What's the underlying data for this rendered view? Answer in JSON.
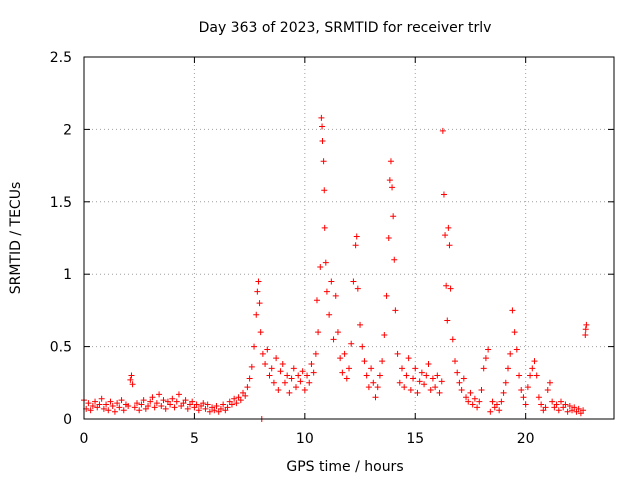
{
  "chart_data": {
    "type": "scatter",
    "title": "Day 363 of 2023, SRMTID for receiver trlv",
    "xlabel": "GPS time / hours",
    "ylabel": "SRMTID / TECUs",
    "xlim": [
      0,
      24
    ],
    "ylim": [
      0,
      2.5
    ],
    "x_ticks": [
      0,
      5,
      10,
      15,
      20
    ],
    "x_tick_labels": [
      "0",
      "5",
      "10",
      "15",
      "20"
    ],
    "y_ticks": [
      0,
      0.5,
      1,
      1.5,
      2,
      2.5
    ],
    "y_tick_labels": [
      "0",
      "0.5",
      "1",
      "1.5",
      "2",
      "2.5"
    ],
    "grid": true,
    "marker": "+",
    "color": "#ff0000",
    "series": [
      {
        "name": "SRMTID",
        "points": [
          [
            0.0,
            0.13
          ],
          [
            0.1,
            0.07
          ],
          [
            0.2,
            0.11
          ],
          [
            0.3,
            0.06
          ],
          [
            0.4,
            0.09
          ],
          [
            0.5,
            0.12
          ],
          [
            0.6,
            0.08
          ],
          [
            0.7,
            0.1
          ],
          [
            0.8,
            0.14
          ],
          [
            0.9,
            0.07
          ],
          [
            1.0,
            0.1
          ],
          [
            1.1,
            0.06
          ],
          [
            1.2,
            0.12
          ],
          [
            1.3,
            0.09
          ],
          [
            1.4,
            0.05
          ],
          [
            1.5,
            0.11
          ],
          [
            1.6,
            0.08
          ],
          [
            1.7,
            0.13
          ],
          [
            1.8,
            0.06
          ],
          [
            1.9,
            0.1
          ],
          [
            2.0,
            0.09
          ],
          [
            2.1,
            0.27
          ],
          [
            2.15,
            0.3
          ],
          [
            2.2,
            0.24
          ],
          [
            2.3,
            0.08
          ],
          [
            2.4,
            0.11
          ],
          [
            2.5,
            0.06
          ],
          [
            2.6,
            0.1
          ],
          [
            2.7,
            0.13
          ],
          [
            2.8,
            0.07
          ],
          [
            2.9,
            0.09
          ],
          [
            3.0,
            0.12
          ],
          [
            3.1,
            0.15
          ],
          [
            3.2,
            0.08
          ],
          [
            3.3,
            0.11
          ],
          [
            3.4,
            0.17
          ],
          [
            3.5,
            0.09
          ],
          [
            3.6,
            0.13
          ],
          [
            3.7,
            0.07
          ],
          [
            3.8,
            0.12
          ],
          [
            3.9,
            0.1
          ],
          [
            4.0,
            0.14
          ],
          [
            4.1,
            0.08
          ],
          [
            4.2,
            0.12
          ],
          [
            4.3,
            0.17
          ],
          [
            4.4,
            0.09
          ],
          [
            4.5,
            0.11
          ],
          [
            4.6,
            0.13
          ],
          [
            4.7,
            0.07
          ],
          [
            4.8,
            0.1
          ],
          [
            4.9,
            0.12
          ],
          [
            5.0,
            0.08
          ],
          [
            5.1,
            0.1
          ],
          [
            5.2,
            0.06
          ],
          [
            5.3,
            0.09
          ],
          [
            5.4,
            0.11
          ],
          [
            5.5,
            0.07
          ],
          [
            5.6,
            0.1
          ],
          [
            5.7,
            0.05
          ],
          [
            5.8,
            0.08
          ],
          [
            5.9,
            0.06
          ],
          [
            6.0,
            0.09
          ],
          [
            6.1,
            0.05
          ],
          [
            6.2,
            0.07
          ],
          [
            6.3,
            0.1
          ],
          [
            6.4,
            0.06
          ],
          [
            6.5,
            0.08
          ],
          [
            6.6,
            0.12
          ],
          [
            6.7,
            0.1
          ],
          [
            6.8,
            0.14
          ],
          [
            6.9,
            0.11
          ],
          [
            7.0,
            0.15
          ],
          [
            7.1,
            0.13
          ],
          [
            7.2,
            0.18
          ],
          [
            7.3,
            0.16
          ],
          [
            7.4,
            0.22
          ],
          [
            7.5,
            0.28
          ],
          [
            7.6,
            0.36
          ],
          [
            7.7,
            0.5
          ],
          [
            7.8,
            0.72
          ],
          [
            7.85,
            0.88
          ],
          [
            7.9,
            0.95
          ],
          [
            7.95,
            0.8
          ],
          [
            8.0,
            0.6
          ],
          [
            8.05,
            0.0
          ],
          [
            8.1,
            0.45
          ],
          [
            8.2,
            0.38
          ],
          [
            8.3,
            0.48
          ],
          [
            8.4,
            0.3
          ],
          [
            8.5,
            0.35
          ],
          [
            8.6,
            0.25
          ],
          [
            8.7,
            0.42
          ],
          [
            8.8,
            0.2
          ],
          [
            8.9,
            0.33
          ],
          [
            9.0,
            0.38
          ],
          [
            9.1,
            0.25
          ],
          [
            9.2,
            0.3
          ],
          [
            9.3,
            0.18
          ],
          [
            9.4,
            0.28
          ],
          [
            9.5,
            0.35
          ],
          [
            9.6,
            0.22
          ],
          [
            9.7,
            0.3
          ],
          [
            9.8,
            0.26
          ],
          [
            9.9,
            0.33
          ],
          [
            10.0,
            0.2
          ],
          [
            10.1,
            0.3
          ],
          [
            10.2,
            0.25
          ],
          [
            10.3,
            0.38
          ],
          [
            10.4,
            0.32
          ],
          [
            10.5,
            0.45
          ],
          [
            10.55,
            0.82
          ],
          [
            10.6,
            0.6
          ],
          [
            10.7,
            1.05
          ],
          [
            10.75,
            2.08
          ],
          [
            10.78,
            2.02
          ],
          [
            10.8,
            1.92
          ],
          [
            10.85,
            1.78
          ],
          [
            10.88,
            1.58
          ],
          [
            10.9,
            1.32
          ],
          [
            10.95,
            1.08
          ],
          [
            11.0,
            0.88
          ],
          [
            11.1,
            0.72
          ],
          [
            11.2,
            0.95
          ],
          [
            11.3,
            0.55
          ],
          [
            11.4,
            0.85
          ],
          [
            11.5,
            0.6
          ],
          [
            11.6,
            0.42
          ],
          [
            11.7,
            0.32
          ],
          [
            11.8,
            0.45
          ],
          [
            11.9,
            0.28
          ],
          [
            12.0,
            0.35
          ],
          [
            12.1,
            0.52
          ],
          [
            12.2,
            0.95
          ],
          [
            12.3,
            1.2
          ],
          [
            12.35,
            1.26
          ],
          [
            12.4,
            0.9
          ],
          [
            12.5,
            0.65
          ],
          [
            12.6,
            0.5
          ],
          [
            12.7,
            0.4
          ],
          [
            12.8,
            0.3
          ],
          [
            12.9,
            0.22
          ],
          [
            13.0,
            0.35
          ],
          [
            13.1,
            0.25
          ],
          [
            13.2,
            0.15
          ],
          [
            13.3,
            0.22
          ],
          [
            13.4,
            0.3
          ],
          [
            13.5,
            0.4
          ],
          [
            13.6,
            0.58
          ],
          [
            13.7,
            0.85
          ],
          [
            13.8,
            1.25
          ],
          [
            13.85,
            1.65
          ],
          [
            13.9,
            1.78
          ],
          [
            13.95,
            1.6
          ],
          [
            14.0,
            1.4
          ],
          [
            14.05,
            1.1
          ],
          [
            14.1,
            0.75
          ],
          [
            14.2,
            0.45
          ],
          [
            14.3,
            0.25
          ],
          [
            14.4,
            0.35
          ],
          [
            14.5,
            0.22
          ],
          [
            14.6,
            0.3
          ],
          [
            14.7,
            0.42
          ],
          [
            14.8,
            0.2
          ],
          [
            14.9,
            0.28
          ],
          [
            15.0,
            0.35
          ],
          [
            15.1,
            0.18
          ],
          [
            15.2,
            0.26
          ],
          [
            15.3,
            0.32
          ],
          [
            15.4,
            0.24
          ],
          [
            15.5,
            0.3
          ],
          [
            15.6,
            0.38
          ],
          [
            15.7,
            0.2
          ],
          [
            15.8,
            0.28
          ],
          [
            15.9,
            0.22
          ],
          [
            16.0,
            0.3
          ],
          [
            16.1,
            0.18
          ],
          [
            16.2,
            0.26
          ],
          [
            16.25,
            1.99
          ],
          [
            16.3,
            1.55
          ],
          [
            16.35,
            1.27
          ],
          [
            16.4,
            0.92
          ],
          [
            16.45,
            0.68
          ],
          [
            16.5,
            1.32
          ],
          [
            16.55,
            1.2
          ],
          [
            16.6,
            0.9
          ],
          [
            16.7,
            0.55
          ],
          [
            16.8,
            0.4
          ],
          [
            16.9,
            0.32
          ],
          [
            17.0,
            0.25
          ],
          [
            17.1,
            0.2
          ],
          [
            17.2,
            0.28
          ],
          [
            17.3,
            0.15
          ],
          [
            17.4,
            0.12
          ],
          [
            17.5,
            0.18
          ],
          [
            17.6,
            0.1
          ],
          [
            17.7,
            0.14
          ],
          [
            17.8,
            0.08
          ],
          [
            17.9,
            0.12
          ],
          [
            18.0,
            0.2
          ],
          [
            18.1,
            0.35
          ],
          [
            18.2,
            0.42
          ],
          [
            18.3,
            0.48
          ],
          [
            18.4,
            0.05
          ],
          [
            18.5,
            0.12
          ],
          [
            18.6,
            0.08
          ],
          [
            18.7,
            0.1
          ],
          [
            18.8,
            0.06
          ],
          [
            18.9,
            0.12
          ],
          [
            19.0,
            0.18
          ],
          [
            19.1,
            0.25
          ],
          [
            19.2,
            0.35
          ],
          [
            19.3,
            0.45
          ],
          [
            19.4,
            0.75
          ],
          [
            19.5,
            0.6
          ],
          [
            19.6,
            0.48
          ],
          [
            19.7,
            0.3
          ],
          [
            19.8,
            0.2
          ],
          [
            19.9,
            0.15
          ],
          [
            20.0,
            0.1
          ],
          [
            20.1,
            0.22
          ],
          [
            20.2,
            0.3
          ],
          [
            20.3,
            0.35
          ],
          [
            20.4,
            0.4
          ],
          [
            20.5,
            0.3
          ],
          [
            20.6,
            0.15
          ],
          [
            20.7,
            0.1
          ],
          [
            20.8,
            0.06
          ],
          [
            20.9,
            0.08
          ],
          [
            21.0,
            0.2
          ],
          [
            21.1,
            0.25
          ],
          [
            21.2,
            0.12
          ],
          [
            21.3,
            0.08
          ],
          [
            21.4,
            0.1
          ],
          [
            21.5,
            0.06
          ],
          [
            21.6,
            0.12
          ],
          [
            21.7,
            0.08
          ],
          [
            21.8,
            0.1
          ],
          [
            21.9,
            0.05
          ],
          [
            22.0,
            0.09
          ],
          [
            22.1,
            0.06
          ],
          [
            22.2,
            0.08
          ],
          [
            22.3,
            0.05
          ],
          [
            22.4,
            0.07
          ],
          [
            22.5,
            0.04
          ],
          [
            22.6,
            0.06
          ],
          [
            22.7,
            0.58
          ],
          [
            22.72,
            0.62
          ],
          [
            22.75,
            0.65
          ]
        ]
      }
    ]
  }
}
